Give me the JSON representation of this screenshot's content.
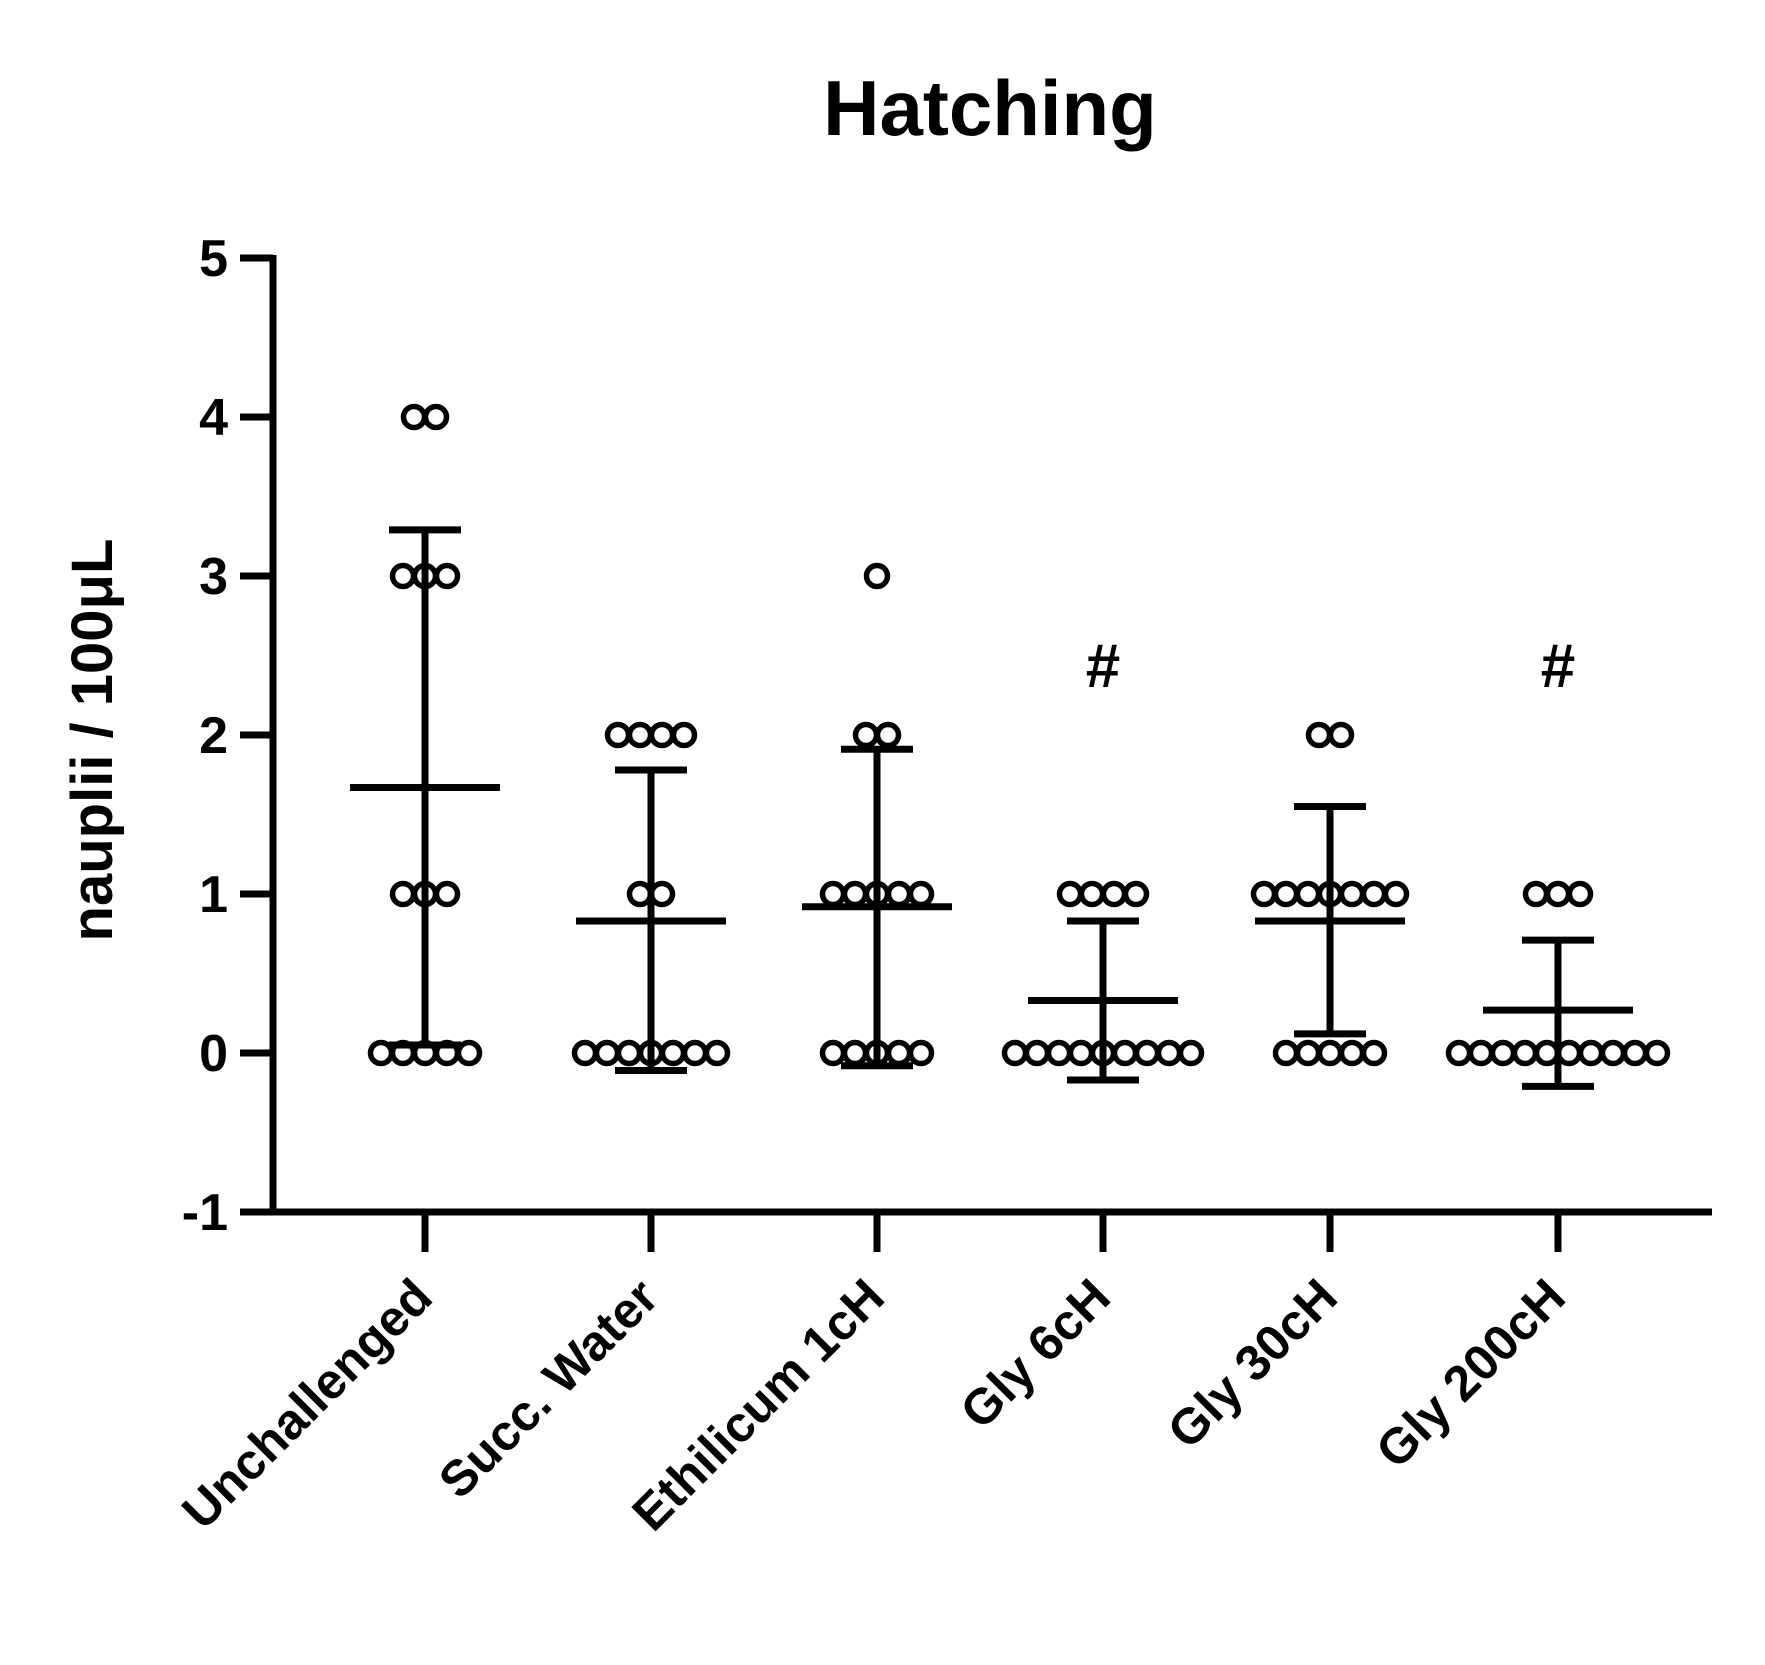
{
  "chart_data": {
    "type": "scatter",
    "title": "Hatching",
    "xlabel": "",
    "ylabel": "nauplii / 100μL",
    "ylim": [
      -1,
      5
    ],
    "yticks": [
      "-1",
      "0",
      "1",
      "2",
      "3",
      "4",
      "5"
    ],
    "categories": [
      "Unchallenged",
      "Succ. Water",
      "Ethilicum 1cH",
      "Gly 6cH",
      "Gly 30cH",
      "Gly 200cH"
    ],
    "groups": [
      {
        "name": "Unchallenged",
        "mean": 1.67,
        "sd_low": 0.05,
        "sd_high": 3.29,
        "points": [
          4,
          4,
          3,
          3,
          3,
          1,
          1,
          1,
          0,
          0,
          0,
          0,
          0
        ],
        "annotation": ""
      },
      {
        "name": "Succ. Water",
        "mean": 0.83,
        "sd_low": -0.11,
        "sd_high": 1.78,
        "points": [
          2,
          2,
          2,
          2,
          1,
          1,
          0,
          0,
          0,
          0,
          0,
          0,
          0
        ],
        "annotation": ""
      },
      {
        "name": "Ethilicum 1cH",
        "mean": 0.92,
        "sd_low": -0.08,
        "sd_high": 1.91,
        "points": [
          3,
          2,
          2,
          1,
          1,
          1,
          1,
          1,
          0,
          0,
          0,
          0,
          0
        ],
        "annotation": ""
      },
      {
        "name": "Gly 6cH",
        "mean": 0.33,
        "sd_low": -0.17,
        "sd_high": 0.83,
        "points": [
          1,
          1,
          1,
          1,
          0,
          0,
          0,
          0,
          0,
          0,
          0,
          0,
          0
        ],
        "annotation": "#"
      },
      {
        "name": "Gly 30cH",
        "mean": 0.83,
        "sd_low": 0.12,
        "sd_high": 1.55,
        "points": [
          2,
          2,
          1,
          1,
          1,
          1,
          1,
          1,
          1,
          0,
          0,
          0,
          0,
          0
        ],
        "annotation": ""
      },
      {
        "name": "Gly 200cH",
        "mean": 0.27,
        "sd_low": -0.21,
        "sd_high": 0.71,
        "points": [
          1,
          1,
          1,
          0,
          0,
          0,
          0,
          0,
          0,
          0,
          0,
          0,
          0
        ],
        "annotation": "#"
      }
    ]
  }
}
